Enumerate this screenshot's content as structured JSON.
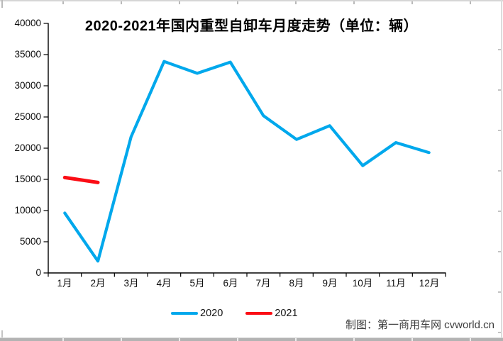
{
  "chart_data": {
    "type": "line",
    "title": "2020-2021年国内重型自卸车月度走势（单位：辆）",
    "categories": [
      "1月",
      "2月",
      "3月",
      "4月",
      "5月",
      "6月",
      "7月",
      "8月",
      "9月",
      "10月",
      "11月",
      "12月"
    ],
    "series": [
      {
        "name": "2020",
        "color": "#00a8ec",
        "values": [
          9600,
          1900,
          21800,
          33900,
          32000,
          33800,
          25200,
          21400,
          23600,
          17200,
          20900,
          19300
        ]
      },
      {
        "name": "2021",
        "color": "#fb0d15",
        "values": [
          15300,
          14500
        ]
      }
    ],
    "ylim": [
      0,
      40000
    ],
    "ytick_step": 5000,
    "ytick_labels": [
      "40000",
      "35000",
      "30000",
      "25000",
      "20000",
      "15000",
      "10000",
      "5000",
      "0"
    ],
    "grid": false,
    "legend_position": "bottom",
    "axis_color": "#000000"
  },
  "footer": {
    "credit": "制图：第一商用车网 cvworld.cn"
  }
}
